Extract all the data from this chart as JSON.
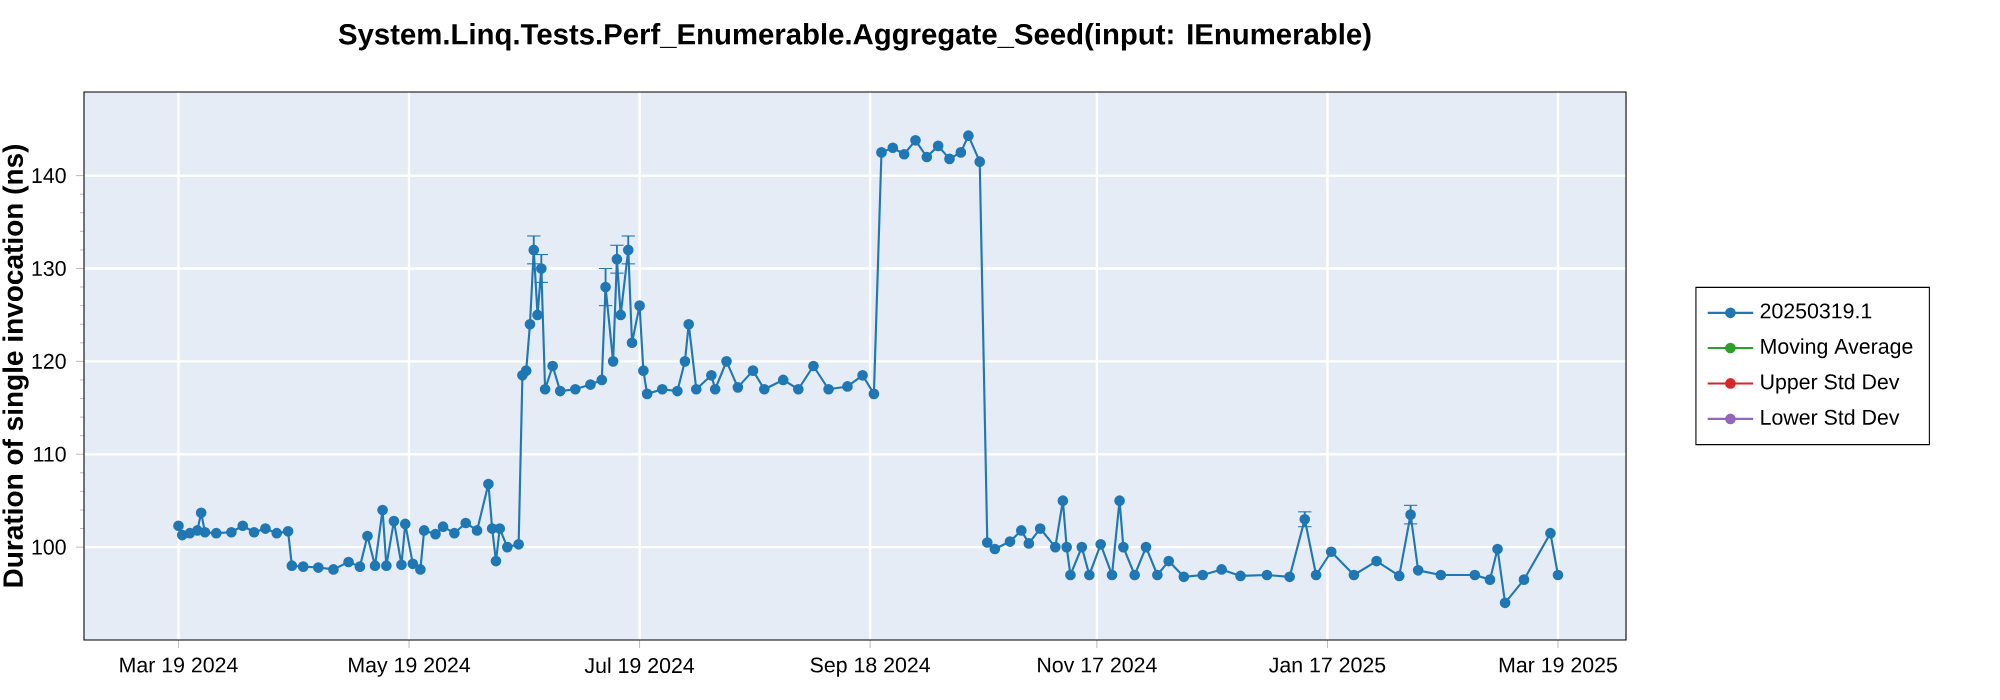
{
  "chart_data": {
    "type": "line",
    "title": "System.Linq.Tests.Perf_Enumerable.Aggregate_Seed(input: IEnumerable)",
    "ylabel": "Duration of single invocation (ns)",
    "x": [
      "2024-03-19",
      "2024-03-20",
      "2024-03-22",
      "2024-03-24",
      "2024-03-25",
      "2024-03-26",
      "2024-03-29",
      "2024-04-02",
      "2024-04-05",
      "2024-04-08",
      "2024-04-11",
      "2024-04-14",
      "2024-04-17",
      "2024-04-18",
      "2024-04-21",
      "2024-04-25",
      "2024-04-29",
      "2024-05-03",
      "2024-05-06",
      "2024-05-08",
      "2024-05-10",
      "2024-05-12",
      "2024-05-13",
      "2024-05-15",
      "2024-05-17",
      "2024-05-18",
      "2024-05-20",
      "2024-05-22",
      "2024-05-23",
      "2024-05-26",
      "2024-05-28",
      "2024-05-31",
      "2024-06-03",
      "2024-06-06",
      "2024-06-09",
      "2024-06-10",
      "2024-06-11",
      "2024-06-12",
      "2024-06-14",
      "2024-06-17",
      "2024-06-18",
      "2024-06-19",
      "2024-06-20",
      "2024-06-21",
      "2024-06-22",
      "2024-06-23",
      "2024-06-24",
      "2024-06-26",
      "2024-06-28",
      "2024-07-02",
      "2024-07-06",
      "2024-07-09",
      "2024-07-10",
      "2024-07-12",
      "2024-07-13",
      "2024-07-14",
      "2024-07-16",
      "2024-07-17",
      "2024-07-19",
      "2024-07-20",
      "2024-07-21",
      "2024-07-25",
      "2024-07-29",
      "2024-07-31",
      "2024-08-01",
      "2024-08-03",
      "2024-08-07",
      "2024-08-08",
      "2024-08-11",
      "2024-08-14",
      "2024-08-18",
      "2024-08-21",
      "2024-08-26",
      "2024-08-30",
      "2024-09-03",
      "2024-09-07",
      "2024-09-12",
      "2024-09-16",
      "2024-09-19",
      "2024-09-21",
      "2024-09-24",
      "2024-09-27",
      "2024-09-30",
      "2024-10-03",
      "2024-10-06",
      "2024-10-09",
      "2024-10-12",
      "2024-10-14",
      "2024-10-17",
      "2024-10-19",
      "2024-10-21",
      "2024-10-25",
      "2024-10-28",
      "2024-10-30",
      "2024-11-02",
      "2024-11-06",
      "2024-11-08",
      "2024-11-09",
      "2024-11-10",
      "2024-11-13",
      "2024-11-15",
      "2024-11-18",
      "2024-11-21",
      "2024-11-23",
      "2024-11-24",
      "2024-11-27",
      "2024-11-30",
      "2024-12-03",
      "2024-12-06",
      "2024-12-10",
      "2024-12-15",
      "2024-12-20",
      "2024-12-25",
      "2025-01-01",
      "2025-01-07",
      "2025-01-11",
      "2025-01-14",
      "2025-01-18",
      "2025-01-24",
      "2025-01-30",
      "2025-02-05",
      "2025-02-08",
      "2025-02-10",
      "2025-02-16",
      "2025-02-25",
      "2025-03-01",
      "2025-03-03",
      "2025-03-05",
      "2025-03-10",
      "2025-03-17",
      "2025-03-19"
    ],
    "series": [
      {
        "name": "20250319.1",
        "color": "#1f77b4",
        "values": [
          102.3,
          101.3,
          101.5,
          101.8,
          103.7,
          101.6,
          101.5,
          101.6,
          102.3,
          101.6,
          102.0,
          101.5,
          101.7,
          98.0,
          97.9,
          97.8,
          97.6,
          98.4,
          97.9,
          101.2,
          98.0,
          104.0,
          98.0,
          102.8,
          98.1,
          102.5,
          98.2,
          97.6,
          101.8,
          101.4,
          102.2,
          101.5,
          102.6,
          101.8,
          106.8,
          102.0,
          98.5,
          102.0,
          100.0,
          100.3,
          118.5,
          119.0,
          124.0,
          132.0,
          125.0,
          130.0,
          117.0,
          119.5,
          116.8,
          117.0,
          117.5,
          118.0,
          128.0,
          120.0,
          131.0,
          125.0,
          132.0,
          122.0,
          126.0,
          119.0,
          116.5,
          117.0,
          116.8,
          120.0,
          124.0,
          117.0,
          118.5,
          117.0,
          120.0,
          117.2,
          119.0,
          117.0,
          118.0,
          117.0,
          119.5,
          117.0,
          117.3,
          118.5,
          116.5,
          142.5,
          143.0,
          142.3,
          143.8,
          142.0,
          143.2,
          141.8,
          142.5,
          144.3,
          141.5,
          100.5,
          99.8,
          100.6,
          101.8,
          100.4,
          102.0,
          100.0,
          105.0,
          100.0,
          97.0,
          100.0,
          97.0,
          100.3,
          97.0,
          105.0,
          100.0,
          97.0,
          100.0,
          97.0,
          98.5,
          96.8,
          97.0,
          97.6,
          96.9,
          97.0,
          96.8,
          103.0,
          97.0,
          99.5,
          97.0,
          98.5,
          96.9,
          103.5,
          97.5,
          97.0,
          97.0,
          96.5,
          99.8,
          94.0,
          96.5,
          101.5,
          97.0
        ],
        "errors": [
          null,
          null,
          null,
          null,
          null,
          null,
          null,
          null,
          null,
          null,
          null,
          null,
          null,
          null,
          null,
          null,
          null,
          null,
          null,
          null,
          null,
          null,
          null,
          null,
          null,
          null,
          null,
          null,
          null,
          null,
          null,
          null,
          null,
          null,
          null,
          null,
          null,
          null,
          null,
          null,
          null,
          null,
          null,
          1.5,
          null,
          1.5,
          null,
          null,
          null,
          null,
          null,
          null,
          2,
          null,
          1.5,
          null,
          1.5,
          null,
          null,
          null,
          null,
          null,
          null,
          null,
          null,
          null,
          null,
          null,
          null,
          null,
          null,
          null,
          null,
          null,
          null,
          null,
          null,
          null,
          null,
          null,
          null,
          null,
          null,
          null,
          null,
          null,
          null,
          null,
          null,
          null,
          null,
          null,
          null,
          null,
          null,
          null,
          null,
          null,
          null,
          null,
          null,
          null,
          null,
          null,
          null,
          null,
          null,
          null,
          null,
          null,
          null,
          null,
          null,
          null,
          null,
          0.8,
          null,
          null,
          null,
          null,
          null,
          1,
          null,
          null,
          null,
          null,
          null,
          null,
          null,
          null,
          null
        ]
      },
      {
        "name": "Moving Average",
        "color": "#2ca02c",
        "values": [
          null,
          null,
          null,
          null,
          null,
          null,
          null,
          null,
          null,
          null,
          null,
          null,
          null,
          null,
          null,
          null,
          null,
          null,
          null,
          null,
          null,
          null,
          null,
          null,
          null,
          null,
          null,
          null,
          null,
          null,
          null,
          null,
          null,
          null,
          null,
          null,
          null,
          null,
          null,
          null,
          null,
          null,
          null,
          null,
          null,
          null,
          null,
          null,
          null,
          null,
          null,
          null,
          null,
          null,
          null,
          null,
          null,
          null,
          null,
          null,
          null,
          null,
          null,
          null,
          null,
          null,
          null,
          null,
          null,
          null,
          null,
          null,
          null,
          null,
          null,
          null,
          null,
          null,
          null,
          null,
          null,
          null,
          null,
          null,
          null,
          null,
          null,
          null,
          null,
          null,
          null,
          null,
          null,
          null,
          null,
          null,
          null,
          null,
          null,
          null,
          null,
          null,
          null,
          null,
          null,
          null,
          null,
          null,
          null,
          null,
          null,
          null,
          null,
          null,
          null,
          null,
          null,
          null,
          null,
          null,
          null,
          null,
          null,
          null,
          null,
          null,
          null,
          null,
          null,
          null,
          null
        ]
      },
      {
        "name": "Upper Std Dev",
        "color": "#d62728",
        "values": [
          null,
          null,
          null,
          null,
          null,
          null,
          null,
          null,
          null,
          null,
          null,
          null,
          null,
          null,
          null,
          null,
          null,
          null,
          null,
          null,
          null,
          null,
          null,
          null,
          null,
          null,
          null,
          null,
          null,
          null,
          null,
          null,
          null,
          null,
          null,
          null,
          null,
          null,
          null,
          null,
          null,
          null,
          null,
          null,
          null,
          null,
          null,
          null,
          null,
          null,
          null,
          null,
          null,
          null,
          null,
          null,
          null,
          null,
          null,
          null,
          null,
          null,
          null,
          null,
          null,
          null,
          null,
          null,
          null,
          null,
          null,
          null,
          null,
          null,
          null,
          null,
          null,
          null,
          null,
          null,
          null,
          null,
          null,
          null,
          null,
          null,
          null,
          null,
          null,
          null,
          null,
          null,
          null,
          null,
          null,
          null,
          null,
          null,
          null,
          null,
          null,
          null,
          null,
          null,
          null,
          null,
          null,
          null,
          null,
          null,
          null,
          null,
          null,
          null,
          null,
          null,
          null,
          null,
          null,
          null,
          null,
          null,
          null,
          null,
          null,
          null,
          null,
          null,
          null,
          null,
          null
        ]
      },
      {
        "name": "Lower Std Dev",
        "color": "#9467bd",
        "values": [
          null,
          null,
          null,
          null,
          null,
          null,
          null,
          null,
          null,
          null,
          null,
          null,
          null,
          null,
          null,
          null,
          null,
          null,
          null,
          null,
          null,
          null,
          null,
          null,
          null,
          null,
          null,
          null,
          null,
          null,
          null,
          null,
          null,
          null,
          null,
          null,
          null,
          null,
          null,
          null,
          null,
          null,
          null,
          null,
          null,
          null,
          null,
          null,
          null,
          null,
          null,
          null,
          null,
          null,
          null,
          null,
          null,
          null,
          null,
          null,
          null,
          null,
          null,
          null,
          null,
          null,
          null,
          null,
          null,
          null,
          null,
          null,
          null,
          null,
          null,
          null,
          null,
          null,
          null,
          null,
          null,
          null,
          null,
          null,
          null,
          null,
          null,
          null,
          null,
          null,
          null,
          null,
          null,
          null,
          null,
          null,
          null,
          null,
          null,
          null,
          null,
          null,
          null,
          null,
          null,
          null,
          null,
          null,
          null,
          null,
          null,
          null,
          null,
          null,
          null,
          null,
          null,
          null,
          null,
          null,
          null,
          null,
          null,
          null,
          null,
          null,
          null,
          null,
          null,
          null,
          null
        ]
      }
    ],
    "xlim": [
      "2024-02-23",
      "2025-04-06"
    ],
    "xticks": [
      {
        "value": "2024-03-19",
        "label": "Mar 19 2024"
      },
      {
        "value": "2024-05-19",
        "label": "May 19 2024"
      },
      {
        "value": "2024-07-19",
        "label": "Jul 19 2024"
      },
      {
        "value": "2024-09-18",
        "label": "Sep 18 2024"
      },
      {
        "value": "2024-11-17",
        "label": "Nov 17 2024"
      },
      {
        "value": "2025-01-17",
        "label": "Jan 17 2025"
      },
      {
        "value": "2025-03-19",
        "label": "Mar 19 2025"
      }
    ],
    "ylim": [
      90,
      149
    ],
    "yticks": [
      100,
      110,
      120,
      130,
      140
    ],
    "grid": true,
    "legend": "right",
    "marker": "circle",
    "line_style": "solid"
  }
}
